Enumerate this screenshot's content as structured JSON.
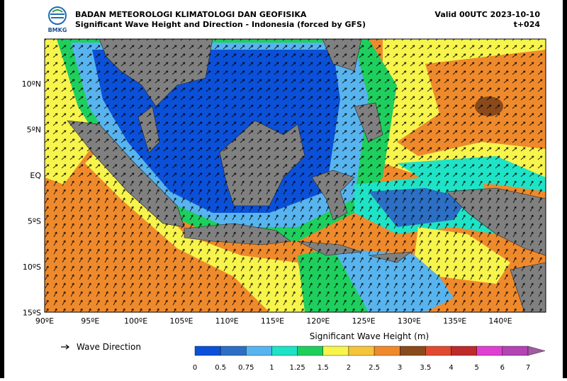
{
  "header": {
    "logo_text": "BMKG",
    "title": "BADAN METEOROLOGI KLIMATOLOGI DAN GEOFISIKA",
    "subtitle": "Significant Wave Height and Direction - Indonesia (forced by GFS)",
    "valid": "Valid 00UTC 2023-10-10",
    "lead": "t+024"
  },
  "map": {
    "lat_labels": [
      "10ºN",
      "5ºN",
      "EQ",
      "5ºS",
      "10ºS",
      "15ºS"
    ],
    "lon_labels": [
      "90ºE",
      "95ºE",
      "100ºE",
      "105ºE",
      "110ºE",
      "115ºE",
      "120ºE",
      "125ºE",
      "130ºE",
      "135ºE",
      "140ºE"
    ]
  },
  "legend": {
    "arrow_label": "Wave Direction"
  },
  "colorbar": {
    "title": "Significant Wave Height (m)",
    "labels": [
      "0",
      "0.5",
      "0.75",
      "1",
      "1.25",
      "1.5",
      "2",
      "2.5",
      "3",
      "3.5",
      "4",
      "5",
      "6",
      "7"
    ],
    "colors": [
      "#0b50d8",
      "#2c6fc4",
      "#58b4ee",
      "#1fe3c6",
      "#1ecf5e",
      "#f7f44c",
      "#f5c43a",
      "#ef8a2c",
      "#8a4a1c",
      "#e04a30",
      "#bf2a2a",
      "#e040d2",
      "#b244b4",
      "#a35aa3"
    ]
  }
}
